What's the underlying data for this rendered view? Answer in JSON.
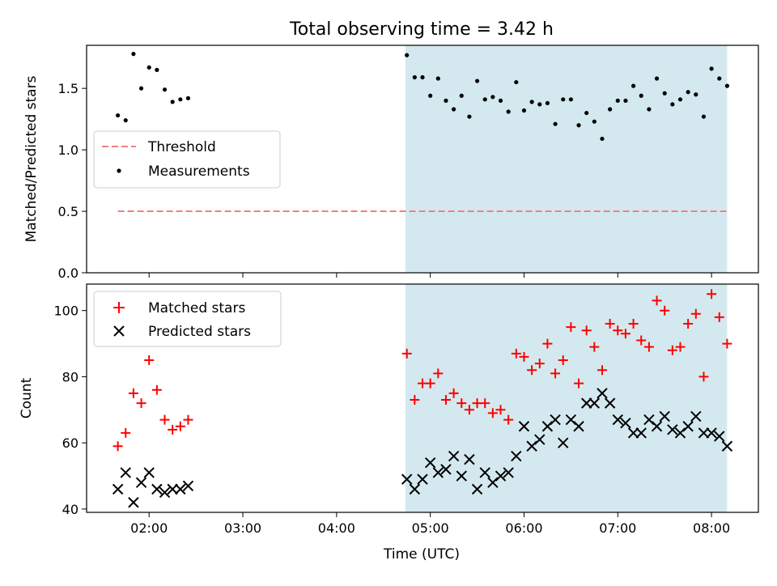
{
  "chart_data": {
    "title": "Total observing time = 3.42 h",
    "xlabel": "Time (UTC)",
    "x_tick_labels": [
      "02:00",
      "03:00",
      "04:00",
      "05:00",
      "06:00",
      "07:00",
      "08:00"
    ],
    "x_ticks": [
      "02:00",
      "03:00",
      "04:00",
      "05:00",
      "06:00",
      "07:00",
      "08:00"
    ],
    "xlim": [
      "01:20",
      "08:30"
    ],
    "highlight_span": {
      "start": "04:44",
      "end": "08:10",
      "color": "#d4e9ef"
    },
    "panels": [
      {
        "type": "scatter",
        "ylabel": "Matched/Predicted stars",
        "ylim": [
          0,
          1.85
        ],
        "y_ticks": [
          0.0,
          0.5,
          1.0,
          1.5
        ],
        "y_tick_labels": [
          "0.0",
          "0.5",
          "1.0",
          "1.5"
        ],
        "legend": {
          "placement": "center-left",
          "entries": [
            "Threshold",
            "Measurements"
          ]
        },
        "threshold": {
          "name": "Threshold",
          "value": 0.5,
          "x_start": "01:40",
          "x_end": "08:10",
          "color": "#f08080",
          "style": "dashed"
        },
        "series": [
          {
            "name": "Measurements",
            "marker": "dot",
            "color": "#000000",
            "points": [
              [
                "01:40",
                1.28
              ],
              [
                "01:45",
                1.24
              ],
              [
                "01:50",
                1.78
              ],
              [
                "01:55",
                1.5
              ],
              [
                "02:00",
                1.67
              ],
              [
                "02:05",
                1.65
              ],
              [
                "02:10",
                1.49
              ],
              [
                "02:15",
                1.39
              ],
              [
                "02:20",
                1.41
              ],
              [
                "02:25",
                1.42
              ],
              [
                "04:45",
                1.77
              ],
              [
                "04:50",
                1.59
              ],
              [
                "04:55",
                1.59
              ],
              [
                "05:00",
                1.44
              ],
              [
                "05:05",
                1.58
              ],
              [
                "05:10",
                1.4
              ],
              [
                "05:15",
                1.33
              ],
              [
                "05:20",
                1.44
              ],
              [
                "05:25",
                1.27
              ],
              [
                "05:30",
                1.56
              ],
              [
                "05:35",
                1.41
              ],
              [
                "05:40",
                1.43
              ],
              [
                "05:45",
                1.4
              ],
              [
                "05:50",
                1.31
              ],
              [
                "05:55",
                1.55
              ],
              [
                "06:00",
                1.32
              ],
              [
                "06:05",
                1.39
              ],
              [
                "06:10",
                1.37
              ],
              [
                "06:15",
                1.38
              ],
              [
                "06:20",
                1.21
              ],
              [
                "06:25",
                1.41
              ],
              [
                "06:30",
                1.41
              ],
              [
                "06:35",
                1.2
              ],
              [
                "06:40",
                1.3
              ],
              [
                "06:45",
                1.23
              ],
              [
                "06:50",
                1.09
              ],
              [
                "06:55",
                1.33
              ],
              [
                "07:00",
                1.4
              ],
              [
                "07:05",
                1.4
              ],
              [
                "07:10",
                1.52
              ],
              [
                "07:15",
                1.44
              ],
              [
                "07:20",
                1.33
              ],
              [
                "07:25",
                1.58
              ],
              [
                "07:30",
                1.46
              ],
              [
                "07:35",
                1.37
              ],
              [
                "07:40",
                1.41
              ],
              [
                "07:45",
                1.47
              ],
              [
                "07:50",
                1.45
              ],
              [
                "07:55",
                1.27
              ],
              [
                "08:00",
                1.66
              ],
              [
                "08:05",
                1.58
              ],
              [
                "08:10",
                1.52
              ]
            ]
          }
        ]
      },
      {
        "type": "scatter",
        "ylabel": "Count",
        "ylim": [
          39,
          108
        ],
        "y_ticks": [
          40,
          60,
          80,
          100
        ],
        "y_tick_labels": [
          "40",
          "60",
          "80",
          "100"
        ],
        "legend": {
          "placement": "upper-left",
          "entries": [
            "Matched stars",
            "Predicted stars"
          ]
        },
        "series": [
          {
            "name": "Matched stars",
            "marker": "plus",
            "color": "#ff0000",
            "points": [
              [
                "01:40",
                59
              ],
              [
                "01:45",
                63
              ],
              [
                "01:50",
                75
              ],
              [
                "01:55",
                72
              ],
              [
                "02:00",
                85
              ],
              [
                "02:05",
                76
              ],
              [
                "02:10",
                67
              ],
              [
                "02:15",
                64
              ],
              [
                "02:20",
                65
              ],
              [
                "02:25",
                67
              ],
              [
                "04:45",
                87
              ],
              [
                "04:50",
                73
              ],
              [
                "04:55",
                78
              ],
              [
                "05:00",
                78
              ],
              [
                "05:05",
                81
              ],
              [
                "05:10",
                73
              ],
              [
                "05:15",
                75
              ],
              [
                "05:20",
                72
              ],
              [
                "05:25",
                70
              ],
              [
                "05:30",
                72
              ],
              [
                "05:35",
                72
              ],
              [
                "05:40",
                69
              ],
              [
                "05:45",
                70
              ],
              [
                "05:50",
                67
              ],
              [
                "05:55",
                87
              ],
              [
                "06:00",
                86
              ],
              [
                "06:05",
                82
              ],
              [
                "06:10",
                84
              ],
              [
                "06:15",
                90
              ],
              [
                "06:20",
                81
              ],
              [
                "06:25",
                85
              ],
              [
                "06:30",
                95
              ],
              [
                "06:35",
                78
              ],
              [
                "06:40",
                94
              ],
              [
                "06:45",
                89
              ],
              [
                "06:50",
                82
              ],
              [
                "06:55",
                96
              ],
              [
                "07:00",
                94
              ],
              [
                "07:05",
                93
              ],
              [
                "07:10",
                96
              ],
              [
                "07:15",
                91
              ],
              [
                "07:20",
                89
              ],
              [
                "07:25",
                103
              ],
              [
                "07:30",
                100
              ],
              [
                "07:35",
                88
              ],
              [
                "07:40",
                89
              ],
              [
                "07:45",
                96
              ],
              [
                "07:50",
                99
              ],
              [
                "07:55",
                80
              ],
              [
                "08:00",
                105
              ],
              [
                "08:05",
                98
              ],
              [
                "08:10",
                90
              ]
            ]
          },
          {
            "name": "Predicted stars",
            "marker": "x",
            "color": "#000000",
            "points": [
              [
                "01:40",
                46
              ],
              [
                "01:45",
                51
              ],
              [
                "01:50",
                42
              ],
              [
                "01:55",
                48
              ],
              [
                "02:00",
                51
              ],
              [
                "02:05",
                46
              ],
              [
                "02:10",
                45
              ],
              [
                "02:15",
                46
              ],
              [
                "02:20",
                46
              ],
              [
                "02:25",
                47
              ],
              [
                "04:45",
                49
              ],
              [
                "04:50",
                46
              ],
              [
                "04:55",
                49
              ],
              [
                "05:00",
                54
              ],
              [
                "05:05",
                51
              ],
              [
                "05:10",
                52
              ],
              [
                "05:15",
                56
              ],
              [
                "05:20",
                50
              ],
              [
                "05:25",
                55
              ],
              [
                "05:30",
                46
              ],
              [
                "05:35",
                51
              ],
              [
                "05:40",
                48
              ],
              [
                "05:45",
                50
              ],
              [
                "05:50",
                51
              ],
              [
                "05:55",
                56
              ],
              [
                "06:00",
                65
              ],
              [
                "06:05",
                59
              ],
              [
                "06:10",
                61
              ],
              [
                "06:15",
                65
              ],
              [
                "06:20",
                67
              ],
              [
                "06:25",
                60
              ],
              [
                "06:30",
                67
              ],
              [
                "06:35",
                65
              ],
              [
                "06:40",
                72
              ],
              [
                "06:45",
                72
              ],
              [
                "06:50",
                75
              ],
              [
                "06:55",
                72
              ],
              [
                "07:00",
                67
              ],
              [
                "07:05",
                66
              ],
              [
                "07:10",
                63
              ],
              [
                "07:15",
                63
              ],
              [
                "07:20",
                67
              ],
              [
                "07:25",
                65
              ],
              [
                "07:30",
                68
              ],
              [
                "07:35",
                64
              ],
              [
                "07:40",
                63
              ],
              [
                "07:45",
                65
              ],
              [
                "07:50",
                68
              ],
              [
                "07:55",
                63
              ],
              [
                "08:00",
                63
              ],
              [
                "08:05",
                62
              ],
              [
                "08:10",
                59
              ]
            ]
          }
        ]
      }
    ]
  }
}
